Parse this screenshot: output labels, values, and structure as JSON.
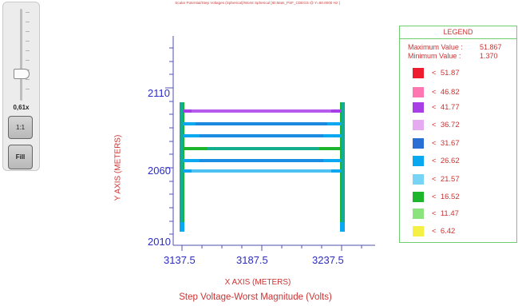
{
  "panel": {
    "zoom_label": "0,61x",
    "ratio_button": "1:1",
    "fill_button": "Fill"
  },
  "plot": {
    "title": "Scalar Potential/Step Voltages (Spherical)/Worst Spherical [ID:Mats_PSF_CDEGS @ Y=60.0000 Hz ]",
    "y_axis_label": "Y AXIS  (METERS)",
    "x_axis_label": "X AXIS  (METERS)",
    "subtitle": "Step Voltage-Worst Magnitude (Volts)",
    "y_ticks": [
      "2110",
      "2060",
      "2010"
    ],
    "x_ticks": [
      "3137.5",
      "3187.5",
      "3237.5"
    ]
  },
  "legend": {
    "header": "LEGEND",
    "max_label": "Maximum Value :",
    "max_value": "51.867",
    "min_label": "Minimum Value :",
    "min_value": "1.370",
    "items": [
      {
        "label": "51.87",
        "color": "#ee1c2e"
      },
      {
        "label": "46.82",
        "color": "#ff77b0"
      },
      {
        "label": "41.77",
        "color": "#a83ee6"
      },
      {
        "label": "36.72",
        "color": "#e6aaf0"
      },
      {
        "label": "31.67",
        "color": "#2a6fd4"
      },
      {
        "label": "26.62",
        "color": "#0aa8f0"
      },
      {
        "label": "21.57",
        "color": "#78d4f5"
      },
      {
        "label": "16.52",
        "color": "#1db52c"
      },
      {
        "label": "11.47",
        "color": "#8ae37d"
      },
      {
        "label": "6.42",
        "color": "#f5f046"
      }
    ]
  }
}
